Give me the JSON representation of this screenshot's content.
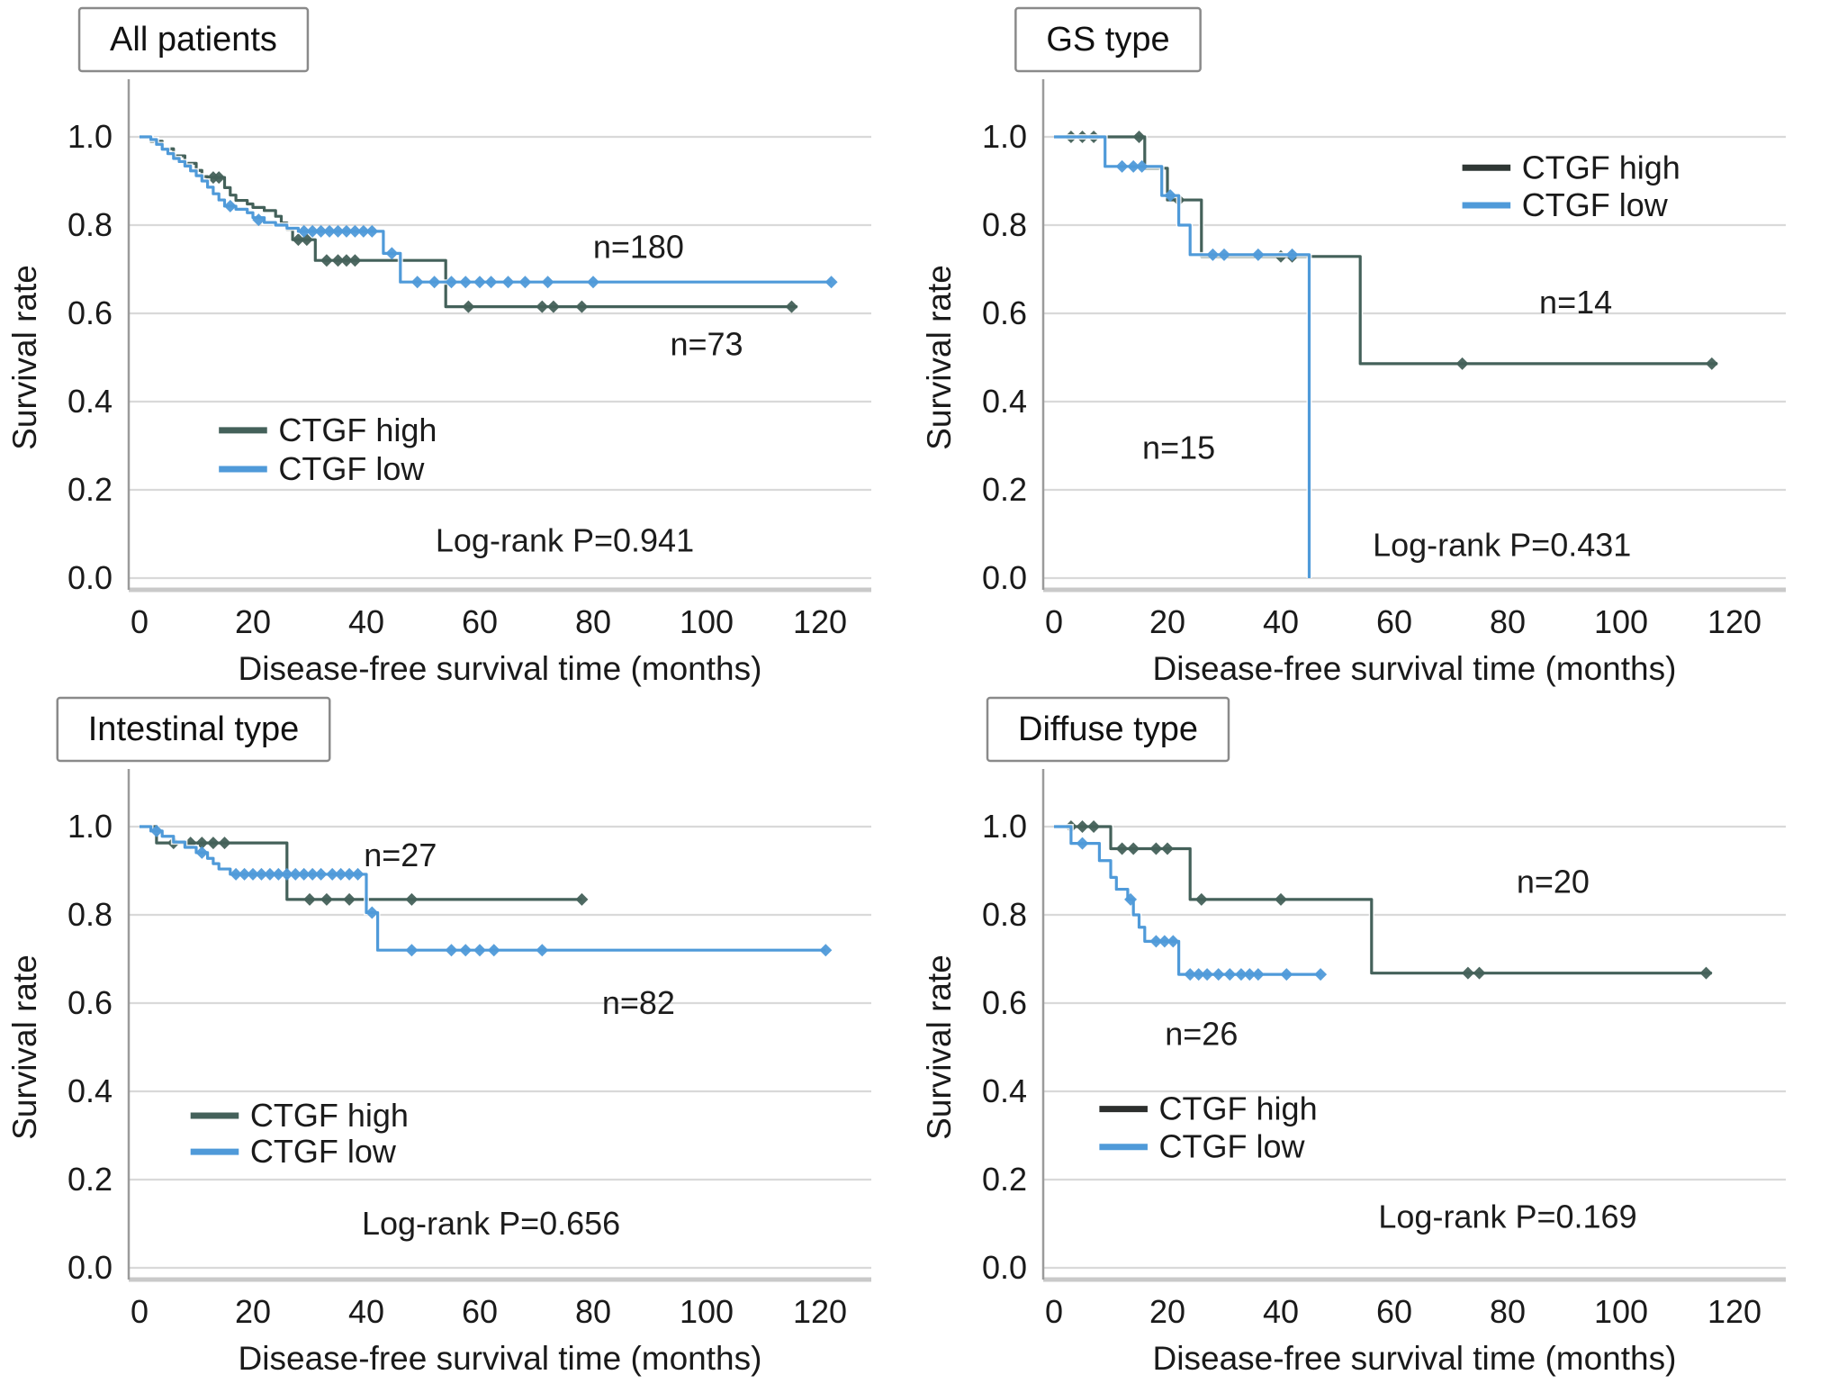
{
  "page": {
    "background": "#ffffff"
  },
  "colors": {
    "ctgf_high": "#44615a",
    "ctgf_low": "#4f9ad9",
    "grid": "#d9d9d9",
    "axis_line": "#9b9b9b",
    "box_bottom": "#c9c9c9",
    "text": "#1a1a1a"
  },
  "chart_data": [
    {
      "type": "line",
      "subtype": "kaplan-meier-step",
      "title": "All patients",
      "xlabel": "Disease-free survival time (months)",
      "ylabel": "Survival rate",
      "xlim": [
        0,
        130
      ],
      "ylim": [
        0,
        1.0
      ],
      "xticks": [
        0,
        20,
        40,
        60,
        80,
        100,
        120
      ],
      "yticks": [
        0.0,
        0.2,
        0.4,
        0.6,
        0.8,
        1.0
      ],
      "grid": "horizontal",
      "legend": {
        "x": 14,
        "y": 0.335,
        "gap": 0.088
      },
      "series": [
        {
          "name": "CTGF high",
          "n": 73,
          "color": "#44615a",
          "steps": [
            [
              0,
              1.0
            ],
            [
              2,
              0.99
            ],
            [
              4,
              0.973
            ],
            [
              6,
              0.957
            ],
            [
              8,
              0.94
            ],
            [
              10,
              0.924
            ],
            [
              11,
              0.91
            ],
            [
              12,
              0.908
            ],
            [
              15,
              0.885
            ],
            [
              16,
              0.868
            ],
            [
              17,
              0.856
            ],
            [
              19,
              0.848
            ],
            [
              20,
              0.84
            ],
            [
              22,
              0.833
            ],
            [
              24,
              0.82
            ],
            [
              25,
              0.805
            ],
            [
              26,
              0.79
            ],
            [
              27,
              0.767
            ],
            [
              31,
              0.72
            ],
            [
              54,
              0.615
            ],
            [
              116,
              0.615
            ]
          ],
          "censors": [
            [
              13,
              0.908
            ],
            [
              14,
              0.908
            ],
            [
              28,
              0.767
            ],
            [
              29.5,
              0.767
            ],
            [
              33,
              0.72
            ],
            [
              35,
              0.72
            ],
            [
              36.5,
              0.72
            ],
            [
              38,
              0.72
            ],
            [
              58,
              0.615
            ],
            [
              71,
              0.615
            ],
            [
              73,
              0.615
            ],
            [
              78,
              0.615
            ],
            [
              115,
              0.615
            ]
          ]
        },
        {
          "name": "CTGF low",
          "n": 180,
          "color": "#4f9ad9",
          "steps": [
            [
              0,
              1.0
            ],
            [
              2,
              0.994
            ],
            [
              3,
              0.983
            ],
            [
              4,
              0.972
            ],
            [
              5,
              0.962
            ],
            [
              6,
              0.951
            ],
            [
              7,
              0.944
            ],
            [
              8,
              0.934
            ],
            [
              9,
              0.923
            ],
            [
              10,
              0.912
            ],
            [
              11,
              0.9
            ],
            [
              12,
              0.886
            ],
            [
              13,
              0.871
            ],
            [
              14,
              0.857
            ],
            [
              15,
              0.843
            ],
            [
              17,
              0.836
            ],
            [
              19,
              0.828
            ],
            [
              20,
              0.817
            ],
            [
              22,
              0.806
            ],
            [
              24,
              0.8
            ],
            [
              26,
              0.793
            ],
            [
              28,
              0.786
            ],
            [
              43,
              0.736
            ],
            [
              46,
              0.671
            ],
            [
              122,
              0.671
            ]
          ],
          "censors": [
            [
              16,
              0.843
            ],
            [
              21,
              0.812
            ],
            [
              29,
              0.786
            ],
            [
              30.5,
              0.786
            ],
            [
              32,
              0.786
            ],
            [
              33.5,
              0.786
            ],
            [
              35,
              0.786
            ],
            [
              36.5,
              0.786
            ],
            [
              38,
              0.786
            ],
            [
              39.5,
              0.786
            ],
            [
              41,
              0.786
            ],
            [
              44.5,
              0.736
            ],
            [
              49,
              0.671
            ],
            [
              52,
              0.671
            ],
            [
              55,
              0.671
            ],
            [
              57.5,
              0.671
            ],
            [
              60,
              0.671
            ],
            [
              62,
              0.671
            ],
            [
              65,
              0.671
            ],
            [
              68,
              0.671
            ],
            [
              72,
              0.671
            ],
            [
              80,
              0.671
            ],
            [
              122,
              0.671
            ]
          ]
        }
      ],
      "annotations": [
        {
          "text": "n=180",
          "x": 88,
          "y": 0.75
        },
        {
          "text": "n=73",
          "x": 100,
          "y": 0.53
        },
        {
          "text": "Log-rank P=0.941",
          "x": 75,
          "y": 0.085
        }
      ]
    },
    {
      "type": "line",
      "subtype": "kaplan-meier-step",
      "title": "GS type",
      "xlabel": "Disease-free survival time (months)",
      "ylabel": "Survival rate",
      "xlim": [
        0,
        130
      ],
      "ylim": [
        0,
        1.0
      ],
      "xticks": [
        0,
        20,
        40,
        60,
        80,
        100,
        120
      ],
      "yticks": [
        0.0,
        0.2,
        0.4,
        0.6,
        0.8,
        1.0
      ],
      "grid": "horizontal",
      "legend": {
        "x": 72,
        "y": 0.93,
        "gap": 0.085
      },
      "series": [
        {
          "name": "CTGF high",
          "n": 14,
          "color": "#44615a",
          "legend_color": "#2f3734",
          "steps": [
            [
              0,
              1.0
            ],
            [
              16,
              0.929
            ],
            [
              20,
              0.857
            ],
            [
              26,
              0.729
            ],
            [
              54,
              0.486
            ],
            [
              117,
              0.486
            ]
          ],
          "censors": [
            [
              3,
              1.0
            ],
            [
              5,
              1.0
            ],
            [
              7,
              1.0
            ],
            [
              15,
              1.0
            ],
            [
              22,
              0.857
            ],
            [
              40,
              0.729
            ],
            [
              42,
              0.729
            ],
            [
              72,
              0.486
            ],
            [
              116,
              0.486
            ]
          ]
        },
        {
          "name": "CTGF low",
          "n": 15,
          "color": "#4f9ad9",
          "steps": [
            [
              0,
              1.0
            ],
            [
              9,
              0.933
            ],
            [
              19,
              0.867
            ],
            [
              22,
              0.8
            ],
            [
              24,
              0.733
            ],
            [
              45,
              0.0
            ]
          ],
          "censors": [
            [
              12,
              0.933
            ],
            [
              14,
              0.933
            ],
            [
              15.5,
              0.933
            ],
            [
              20.5,
              0.867
            ],
            [
              28,
              0.733
            ],
            [
              30,
              0.733
            ],
            [
              36,
              0.733
            ],
            [
              42,
              0.733
            ]
          ]
        }
      ],
      "annotations": [
        {
          "text": "n=14",
          "x": 92,
          "y": 0.625
        },
        {
          "text": "n=15",
          "x": 22,
          "y": 0.295
        },
        {
          "text": "Log-rank P=0.431",
          "x": 79,
          "y": 0.075
        }
      ]
    },
    {
      "type": "line",
      "subtype": "kaplan-meier-step",
      "title": "Intestinal type",
      "xlabel": "Disease-free survival time (months)",
      "ylabel": "Survival rate",
      "xlim": [
        0,
        130
      ],
      "ylim": [
        0,
        1.0
      ],
      "xticks": [
        0,
        20,
        40,
        60,
        80,
        100,
        120
      ],
      "yticks": [
        0.0,
        0.2,
        0.4,
        0.6,
        0.8,
        1.0
      ],
      "grid": "horizontal",
      "legend": {
        "x": 9,
        "y": 0.345,
        "gap": 0.082
      },
      "series": [
        {
          "name": "CTGF high",
          "n": 27,
          "color": "#44615a",
          "steps": [
            [
              0,
              1.0
            ],
            [
              3,
              0.963
            ],
            [
              26,
              0.835
            ],
            [
              78,
              0.835
            ]
          ],
          "censors": [
            [
              6,
              0.963
            ],
            [
              9,
              0.963
            ],
            [
              11,
              0.963
            ],
            [
              13,
              0.963
            ],
            [
              15,
              0.963
            ],
            [
              30,
              0.835
            ],
            [
              33,
              0.835
            ],
            [
              37,
              0.835
            ],
            [
              48,
              0.835
            ],
            [
              78,
              0.835
            ]
          ]
        },
        {
          "name": "CTGF low",
          "n": 82,
          "color": "#4f9ad9",
          "steps": [
            [
              0,
              1.0
            ],
            [
              2,
              0.99
            ],
            [
              4,
              0.978
            ],
            [
              6,
              0.965
            ],
            [
              8,
              0.953
            ],
            [
              10,
              0.941
            ],
            [
              12,
              0.928
            ],
            [
              13,
              0.916
            ],
            [
              14,
              0.904
            ],
            [
              16,
              0.892
            ],
            [
              40,
              0.805
            ],
            [
              42,
              0.72
            ],
            [
              121,
              0.72
            ]
          ],
          "censors": [
            [
              3,
              0.99
            ],
            [
              11,
              0.941
            ],
            [
              17,
              0.892
            ],
            [
              18.5,
              0.892
            ],
            [
              20,
              0.892
            ],
            [
              21.5,
              0.892
            ],
            [
              23,
              0.892
            ],
            [
              24.5,
              0.892
            ],
            [
              26,
              0.892
            ],
            [
              27.5,
              0.892
            ],
            [
              29,
              0.892
            ],
            [
              30.5,
              0.892
            ],
            [
              32,
              0.892
            ],
            [
              34,
              0.892
            ],
            [
              35.5,
              0.892
            ],
            [
              37,
              0.892
            ],
            [
              38.5,
              0.892
            ],
            [
              41,
              0.805
            ],
            [
              48,
              0.72
            ],
            [
              55,
              0.72
            ],
            [
              57.5,
              0.72
            ],
            [
              60,
              0.72
            ],
            [
              62.5,
              0.72
            ],
            [
              71,
              0.72
            ],
            [
              121,
              0.72
            ]
          ]
        }
      ],
      "annotations": [
        {
          "text": "n=27",
          "x": 46,
          "y": 0.935
        },
        {
          "text": "n=82",
          "x": 88,
          "y": 0.6
        },
        {
          "text": "Log-rank P=0.656",
          "x": 62,
          "y": 0.1
        }
      ]
    },
    {
      "type": "line",
      "subtype": "kaplan-meier-step",
      "title": "Diffuse type",
      "xlabel": "Disease-free survival time (months)",
      "ylabel": "Survival rate",
      "xlim": [
        0,
        130
      ],
      "ylim": [
        0,
        1.0
      ],
      "xticks": [
        0,
        20,
        40,
        60,
        80,
        100,
        120
      ],
      "yticks": [
        0.0,
        0.2,
        0.4,
        0.6,
        0.8,
        1.0
      ],
      "grid": "horizontal",
      "legend": {
        "x": 8,
        "y": 0.36,
        "gap": 0.086
      },
      "series": [
        {
          "name": "CTGF high",
          "n": 20,
          "color": "#44615a",
          "legend_color": "#2d2f2e",
          "steps": [
            [
              0,
              1.0
            ],
            [
              10,
              0.95
            ],
            [
              24,
              0.835
            ],
            [
              56,
              0.668
            ],
            [
              116,
              0.668
            ]
          ],
          "censors": [
            [
              3,
              1.0
            ],
            [
              5,
              1.0
            ],
            [
              7,
              1.0
            ],
            [
              12,
              0.95
            ],
            [
              14,
              0.95
            ],
            [
              18,
              0.95
            ],
            [
              20,
              0.95
            ],
            [
              26,
              0.835
            ],
            [
              40,
              0.835
            ],
            [
              73,
              0.668
            ],
            [
              75,
              0.668
            ],
            [
              115,
              0.668
            ]
          ]
        },
        {
          "name": "CTGF low",
          "n": 26,
          "color": "#4f9ad9",
          "steps": [
            [
              0,
              1.0
            ],
            [
              3,
              0.962
            ],
            [
              8,
              0.923
            ],
            [
              10,
              0.885
            ],
            [
              11,
              0.858
            ],
            [
              13,
              0.835
            ],
            [
              14,
              0.8
            ],
            [
              15,
              0.772
            ],
            [
              16,
              0.74
            ],
            [
              22,
              0.665
            ],
            [
              47,
              0.665
            ]
          ],
          "censors": [
            [
              5,
              0.962
            ],
            [
              13.5,
              0.835
            ],
            [
              18,
              0.74
            ],
            [
              19.5,
              0.74
            ],
            [
              21,
              0.74
            ],
            [
              24,
              0.665
            ],
            [
              25.5,
              0.665
            ],
            [
              27,
              0.665
            ],
            [
              29,
              0.665
            ],
            [
              31,
              0.665
            ],
            [
              33,
              0.665
            ],
            [
              34.5,
              0.665
            ],
            [
              36,
              0.665
            ],
            [
              41,
              0.665
            ],
            [
              47,
              0.665
            ]
          ]
        }
      ],
      "annotations": [
        {
          "text": "n=20",
          "x": 88,
          "y": 0.875
        },
        {
          "text": "n=26",
          "x": 26,
          "y": 0.53
        },
        {
          "text": "Log-rank P=0.169",
          "x": 80,
          "y": 0.115
        }
      ]
    }
  ]
}
